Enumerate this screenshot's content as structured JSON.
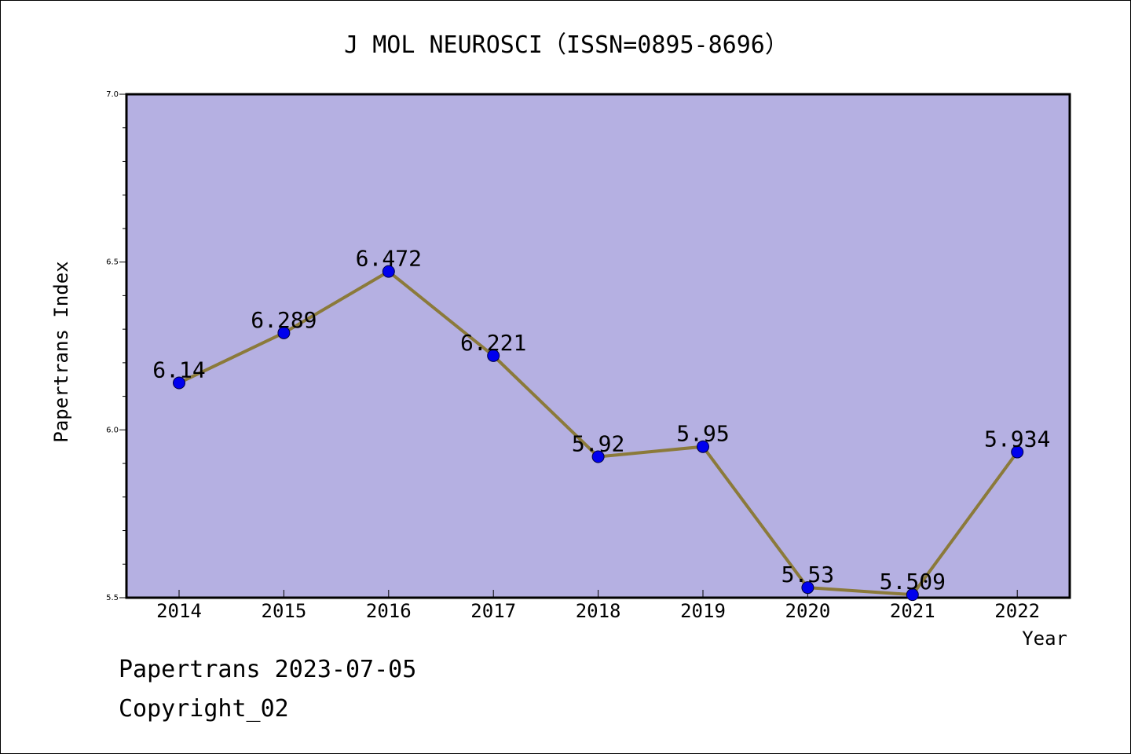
{
  "chart_data": {
    "type": "line",
    "title": "J MOL NEUROSCI（ISSN=0895-8696）",
    "xlabel": "Year",
    "ylabel": "Papertrans Index",
    "categories": [
      "2014",
      "2015",
      "2016",
      "2017",
      "2018",
      "2019",
      "2020",
      "2021",
      "2022"
    ],
    "values": [
      6.14,
      6.289,
      6.472,
      6.221,
      5.92,
      5.95,
      5.53,
      5.509,
      5.934
    ],
    "data_labels": [
      "6.14",
      "6.289",
      "6.472",
      "6.221",
      "5.92",
      "5.95",
      "5.53",
      "5.509",
      "5.934"
    ],
    "ylim": [
      5.5,
      7.0
    ],
    "y_ticks": [
      "5.5",
      "6.0",
      "6.5",
      "7.0"
    ],
    "grid": false,
    "colors": {
      "plot_background": "#b5b0e2",
      "line": "#8b7a3a",
      "marker": "#0000ee"
    }
  },
  "footer": {
    "line1": "Papertrans 2023-07-05",
    "line2": "Copyright_02"
  }
}
